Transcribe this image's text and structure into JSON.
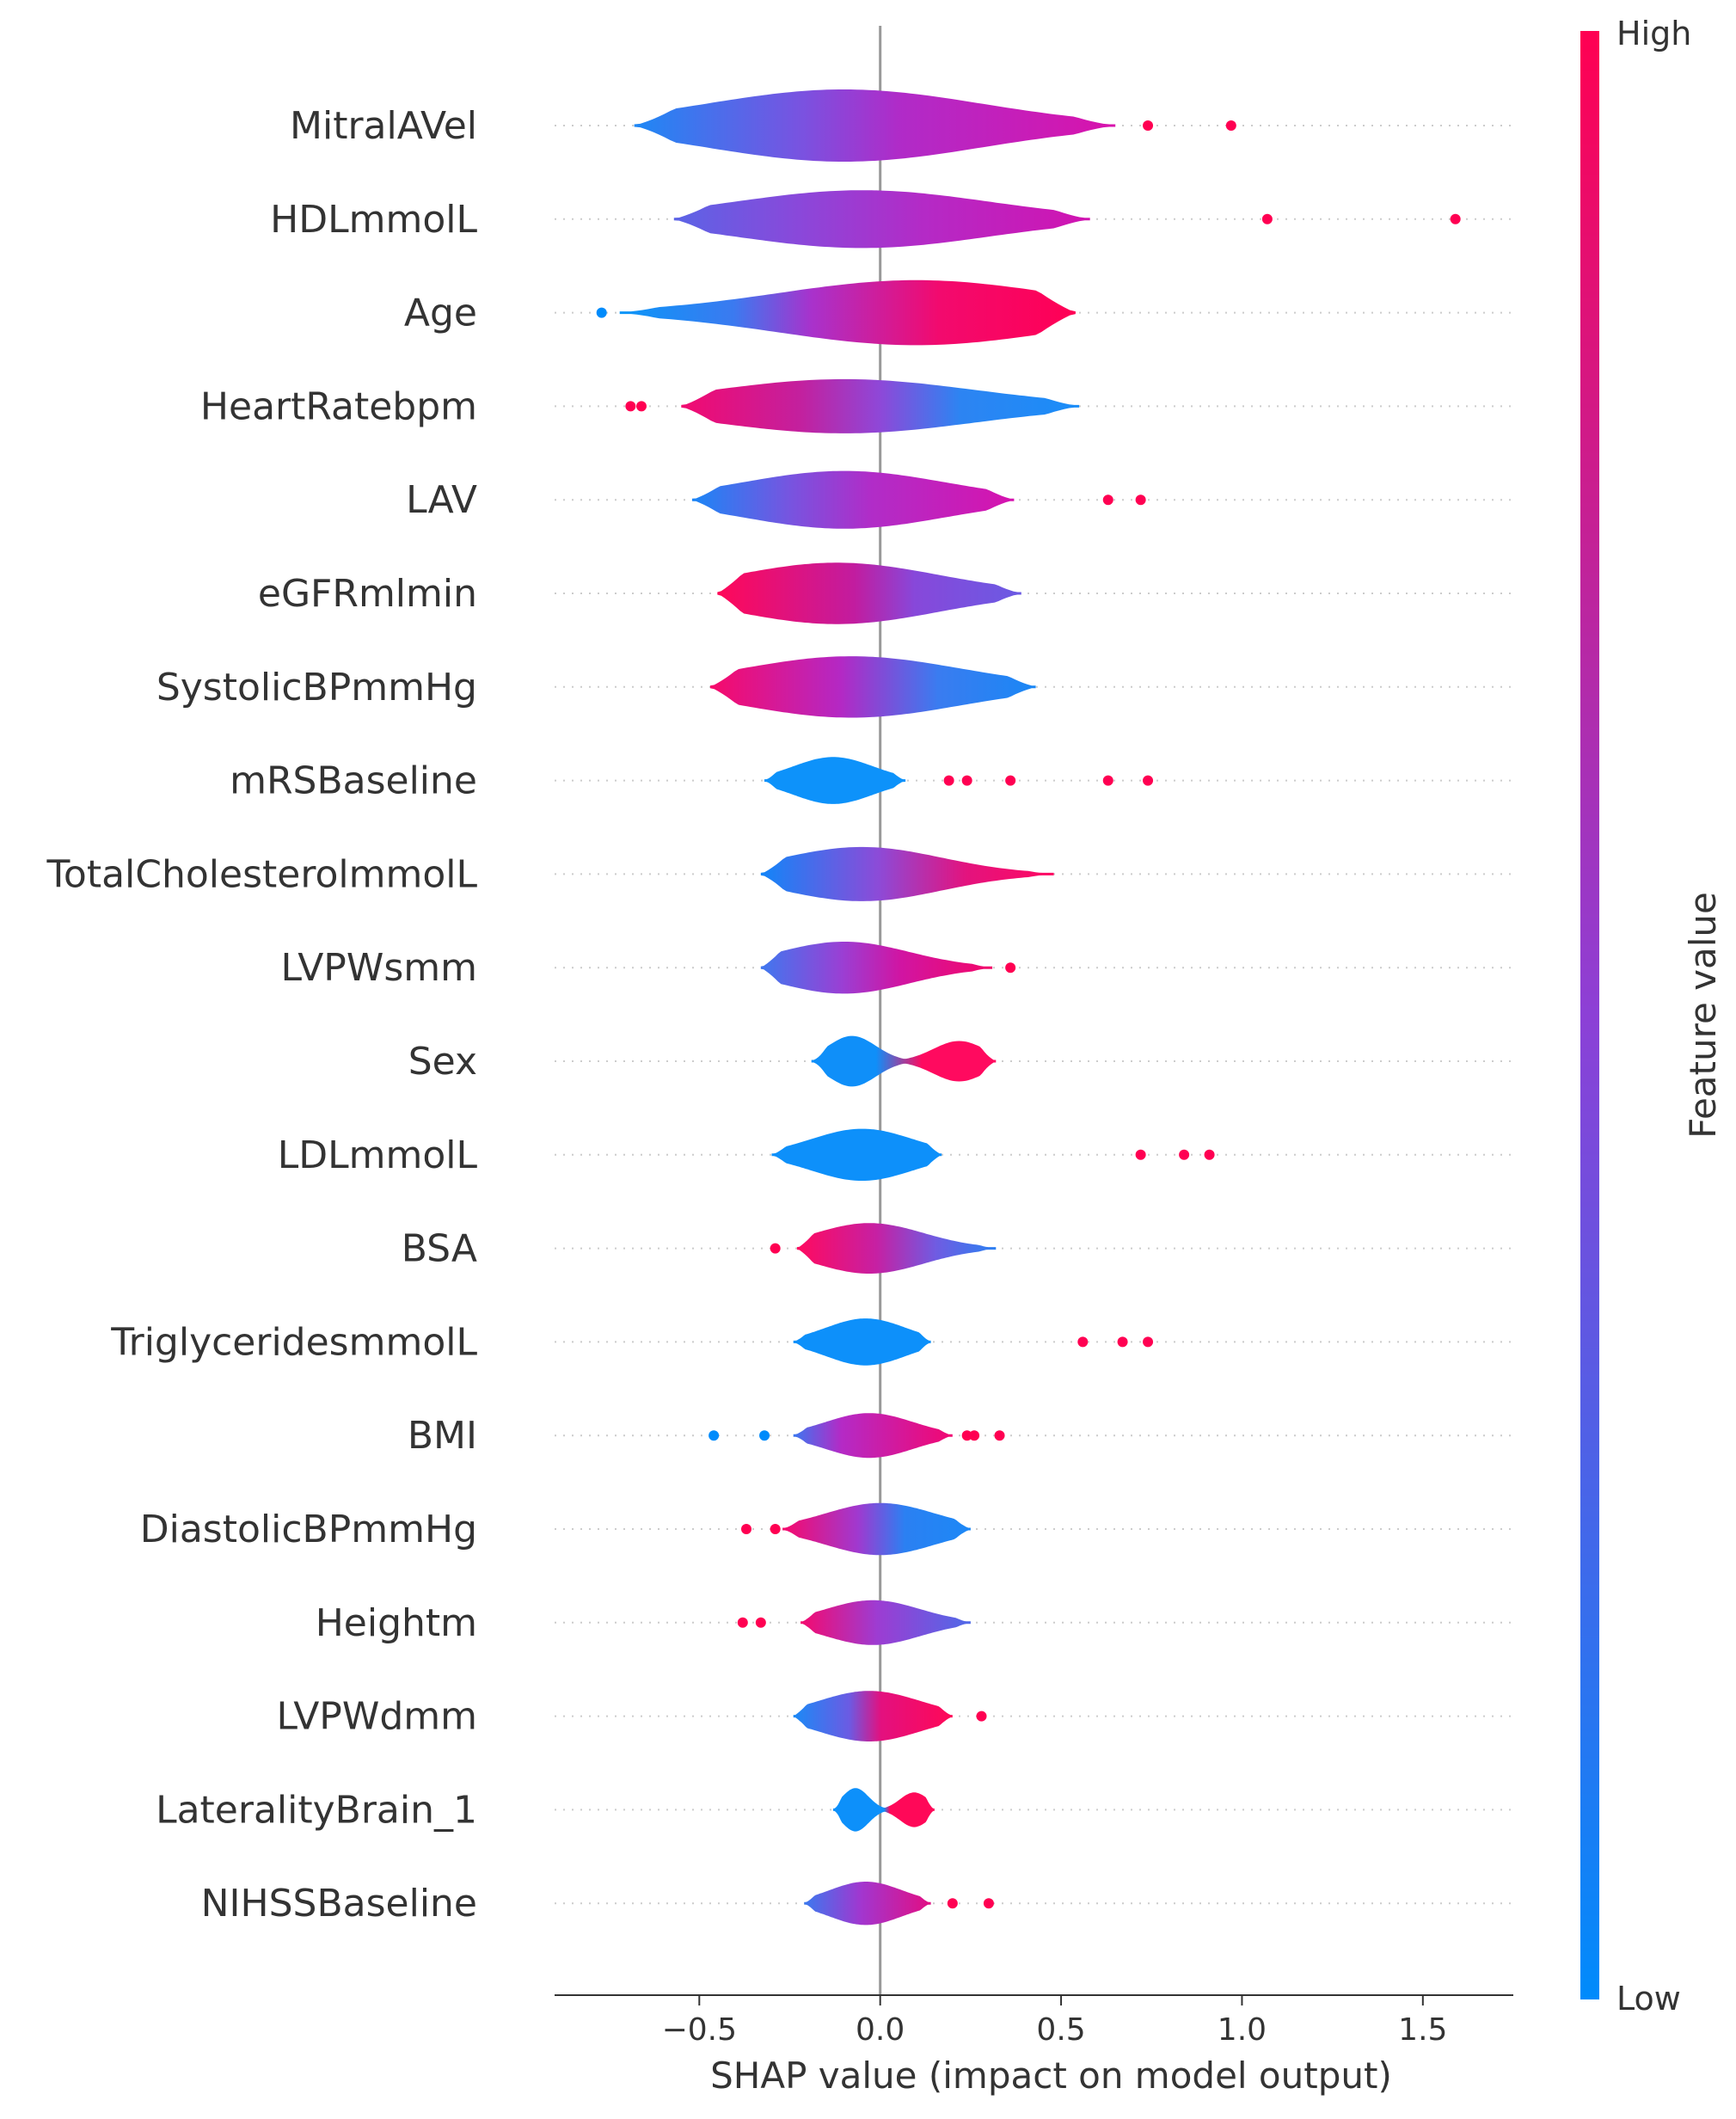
{
  "chart_data": {
    "type": "violin",
    "title": "",
    "xlabel": "SHAP value (impact on model output)",
    "ylabel": "",
    "xlim": [
      -0.9,
      1.75
    ],
    "x_ticks": [
      -0.5,
      0.0,
      0.5,
      1.0,
      1.5
    ],
    "x_tick_labels": [
      "−0.5",
      "0.0",
      "0.5",
      "1.0",
      "1.5"
    ],
    "grid": false,
    "colorbar": {
      "title": "Feature value",
      "high_label": "High",
      "low_label": "Low",
      "high_color": "#ff0052",
      "low_color": "#008bfb"
    },
    "features": [
      {
        "name": "MitralAVel",
        "range": [
          -0.68,
          0.65
        ],
        "peak": -0.1,
        "spread": 0.38,
        "amp": 1.0,
        "colors": [
          [
            0,
            "#1e88f5"
          ],
          [
            0.35,
            "#7a52e0"
          ],
          [
            0.55,
            "#b02bc8"
          ],
          [
            1,
            "#d813ac"
          ]
        ],
        "outliers": [
          [
            0.74,
            "#ff0052"
          ],
          [
            0.97,
            "#ff0052"
          ]
        ]
      },
      {
        "name": "HDLmmolL",
        "range": [
          -0.57,
          0.58
        ],
        "peak": -0.05,
        "spread": 0.35,
        "amp": 0.8,
        "colors": [
          [
            0,
            "#5b64e6"
          ],
          [
            0.3,
            "#8a48da"
          ],
          [
            0.6,
            "#b42ac6"
          ],
          [
            1,
            "#d113b0"
          ]
        ],
        "outliers": [
          [
            1.07,
            "#ff0052"
          ],
          [
            1.59,
            "#ff0052"
          ]
        ]
      },
      {
        "name": "Age",
        "range": [
          -0.72,
          0.54
        ],
        "peak": 0.1,
        "spread": 0.38,
        "amp": 0.9,
        "colors": [
          [
            0,
            "#0a96f8"
          ],
          [
            0.25,
            "#3b7af0"
          ],
          [
            0.42,
            "#a832cc"
          ],
          [
            0.7,
            "#f20a6e"
          ],
          [
            1,
            "#ff0055"
          ]
        ],
        "outliers": [
          [
            -0.77,
            "#008bfb"
          ]
        ]
      },
      {
        "name": "HeartRatebpm",
        "range": [
          -0.55,
          0.55
        ],
        "peak": -0.1,
        "spread": 0.36,
        "amp": 0.75,
        "colors": [
          [
            0,
            "#f20a70"
          ],
          [
            0.3,
            "#c3209e"
          ],
          [
            0.5,
            "#8e48d8"
          ],
          [
            0.7,
            "#2d84f2"
          ],
          [
            1,
            "#1a8df8"
          ]
        ],
        "outliers": [
          [
            -0.69,
            "#ff0052"
          ],
          [
            -0.66,
            "#ff0052"
          ]
        ]
      },
      {
        "name": "LAV",
        "range": [
          -0.52,
          0.37
        ],
        "peak": -0.1,
        "spread": 0.28,
        "amp": 0.8,
        "colors": [
          [
            0,
            "#1b86f6"
          ],
          [
            0.3,
            "#7655e0"
          ],
          [
            0.55,
            "#b02dc8"
          ],
          [
            1,
            "#d613ae"
          ]
        ],
        "outliers": [
          [
            0.63,
            "#ff0052"
          ],
          [
            0.72,
            "#ff0052"
          ]
        ]
      },
      {
        "name": "eGFRmlmin",
        "range": [
          -0.45,
          0.39
        ],
        "peak": -0.12,
        "spread": 0.28,
        "amp": 0.85,
        "colors": [
          [
            0,
            "#ff0859"
          ],
          [
            0.45,
            "#c21c9f"
          ],
          [
            0.65,
            "#8748da"
          ],
          [
            1,
            "#6b5ae3"
          ]
        ],
        "outliers": []
      },
      {
        "name": "SystolicBPmmHg",
        "range": [
          -0.47,
          0.43
        ],
        "peak": -0.08,
        "spread": 0.3,
        "amp": 0.85,
        "colors": [
          [
            0,
            "#f70a6a"
          ],
          [
            0.4,
            "#b428c4"
          ],
          [
            0.7,
            "#3a7cf0"
          ],
          [
            1,
            "#1a87f5"
          ]
        ],
        "outliers": []
      },
      {
        "name": "mRSBaseline",
        "range": [
          -0.32,
          0.07
        ],
        "peak": -0.13,
        "spread": 0.11,
        "amp": 0.65,
        "colors": [
          [
            0,
            "#0d92fa"
          ],
          [
            1,
            "#0d92fa"
          ]
        ],
        "outliers": [
          [
            0.19,
            "#ff0052"
          ],
          [
            0.24,
            "#ff0052"
          ],
          [
            0.36,
            "#ff0052"
          ],
          [
            0.63,
            "#ff0052"
          ],
          [
            0.74,
            "#ff0052"
          ]
        ]
      },
      {
        "name": "TotalCholesterolmmolL",
        "range": [
          -0.33,
          0.48
        ],
        "peak": -0.05,
        "spread": 0.22,
        "amp": 0.75,
        "colors": [
          [
            0,
            "#1285f8"
          ],
          [
            0.4,
            "#8c4bd8"
          ],
          [
            0.7,
            "#e3137e"
          ],
          [
            1,
            "#ff0861"
          ]
        ],
        "outliers": []
      },
      {
        "name": "LVPWsmm",
        "range": [
          -0.33,
          0.31
        ],
        "peak": -0.1,
        "spread": 0.18,
        "amp": 0.72,
        "colors": [
          [
            0,
            "#3f78ef"
          ],
          [
            0.35,
            "#9a3fd4"
          ],
          [
            0.6,
            "#d015a3"
          ],
          [
            1,
            "#f30769"
          ]
        ],
        "outliers": [
          [
            0.36,
            "#ff0052"
          ]
        ]
      },
      {
        "name": "Sex",
        "range": [
          -0.19,
          0.32
        ],
        "peak": -0.1,
        "spread": 0.07,
        "amp": 0.7,
        "colors": [
          [
            0,
            "#0f8ff9"
          ],
          [
            0.35,
            "#0f8ff9"
          ],
          [
            0.6,
            "#ff0a5f"
          ],
          [
            1,
            "#ff0a5f"
          ]
        ],
        "outliers": [],
        "bimodal": true
      },
      {
        "name": "LDLmmolL",
        "range": [
          -0.3,
          0.17
        ],
        "peak": -0.05,
        "spread": 0.14,
        "amp": 0.72,
        "colors": [
          [
            0,
            "#0d90fa"
          ],
          [
            1,
            "#0d90fa"
          ]
        ],
        "outliers": [
          [
            0.72,
            "#ff0052"
          ],
          [
            0.84,
            "#ff0052"
          ],
          [
            0.91,
            "#ff0052"
          ]
        ]
      },
      {
        "name": "BSA",
        "range": [
          -0.23,
          0.32
        ],
        "peak": -0.03,
        "spread": 0.15,
        "amp": 0.7,
        "colors": [
          [
            0,
            "#ff0a5f"
          ],
          [
            0.4,
            "#c620a3"
          ],
          [
            0.7,
            "#6f5ce2"
          ],
          [
            1,
            "#2b80f2"
          ]
        ],
        "outliers": [
          [
            -0.29,
            "#ff0052"
          ]
        ]
      },
      {
        "name": "TriglyceridesmmolL",
        "range": [
          -0.24,
          0.14
        ],
        "peak": -0.04,
        "spread": 0.11,
        "amp": 0.65,
        "colors": [
          [
            0,
            "#0d90fa"
          ],
          [
            1,
            "#0d90fa"
          ]
        ],
        "outliers": [
          [
            0.56,
            "#ff0052"
          ],
          [
            0.67,
            "#ff0052"
          ],
          [
            0.74,
            "#ff0052"
          ]
        ]
      },
      {
        "name": "BMI",
        "range": [
          -0.24,
          0.2
        ],
        "peak": -0.03,
        "spread": 0.12,
        "amp": 0.62,
        "colors": [
          [
            0,
            "#3c77f0"
          ],
          [
            0.3,
            "#b42ac6"
          ],
          [
            1,
            "#f20772"
          ]
        ],
        "outliers": [
          [
            -0.46,
            "#008bfb"
          ],
          [
            -0.32,
            "#008bfb"
          ],
          [
            0.24,
            "#ff0052"
          ],
          [
            0.26,
            "#ff0052"
          ],
          [
            0.33,
            "#ff0052"
          ]
        ]
      },
      {
        "name": "DiastolicBPmmHg",
        "range": [
          -0.27,
          0.25
        ],
        "peak": 0.0,
        "spread": 0.15,
        "amp": 0.72,
        "colors": [
          [
            0,
            "#f7096c"
          ],
          [
            0.4,
            "#a039cf"
          ],
          [
            0.65,
            "#2b80f2"
          ],
          [
            1,
            "#1c88f6"
          ]
        ],
        "outliers": [
          [
            -0.37,
            "#ff0052"
          ],
          [
            -0.29,
            "#ff0052"
          ]
        ]
      },
      {
        "name": "Heightm",
        "range": [
          -0.22,
          0.25
        ],
        "peak": -0.02,
        "spread": 0.13,
        "amp": 0.62,
        "colors": [
          [
            0,
            "#f40a6f"
          ],
          [
            0.45,
            "#9d3cd2"
          ],
          [
            1,
            "#4f6ae8"
          ]
        ],
        "outliers": [
          [
            -0.38,
            "#ff0052"
          ],
          [
            -0.33,
            "#ff0052"
          ]
        ]
      },
      {
        "name": "LVPWdmm",
        "range": [
          -0.24,
          0.2
        ],
        "peak": -0.03,
        "spread": 0.14,
        "amp": 0.7,
        "colors": [
          [
            0,
            "#1b8af6"
          ],
          [
            0.35,
            "#6b5be3"
          ],
          [
            0.55,
            "#e3107f"
          ],
          [
            1,
            "#ff0857"
          ]
        ],
        "outliers": [
          [
            0.28,
            "#ff0052"
          ]
        ]
      },
      {
        "name": "LateralityBrain_1",
        "range": [
          -0.13,
          0.15
        ],
        "peak": -0.08,
        "spread": 0.05,
        "amp": 0.6,
        "colors": [
          [
            0,
            "#0d90fa"
          ],
          [
            0.5,
            "#0d90fa"
          ],
          [
            0.56,
            "#ff0858"
          ],
          [
            1,
            "#ff0858"
          ]
        ],
        "outliers": [],
        "bimodal": true
      },
      {
        "name": "NIHSSBaseline",
        "range": [
          -0.21,
          0.14
        ],
        "peak": -0.04,
        "spread": 0.1,
        "amp": 0.6,
        "colors": [
          [
            0,
            "#3b79ef"
          ],
          [
            0.45,
            "#a236cf"
          ],
          [
            1,
            "#e20e83"
          ]
        ],
        "outliers": [
          [
            0.2,
            "#ff0052"
          ],
          [
            0.3,
            "#ff0052"
          ]
        ]
      }
    ]
  }
}
